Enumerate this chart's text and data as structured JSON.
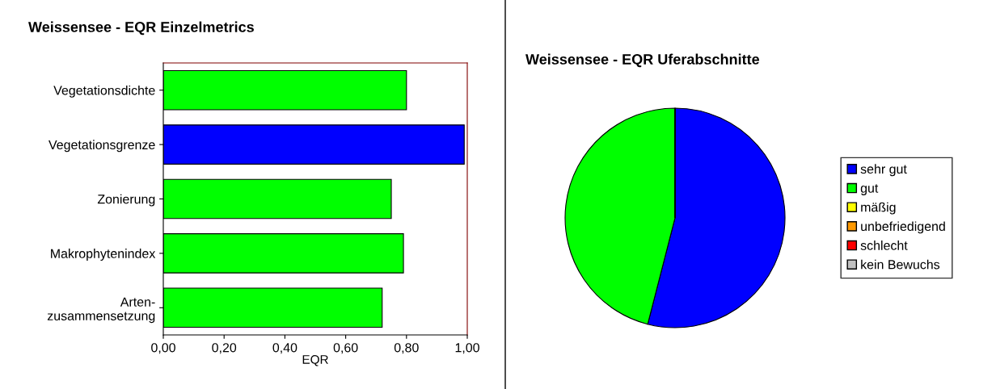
{
  "chart_data": [
    {
      "type": "bar",
      "title": "Weissensee - EQR Einzelmetrics",
      "xlabel": "EQR",
      "orientation": "horizontal",
      "categories": [
        "Vegetationsdichte",
        "Vegetationsgrenze",
        "Zonierung",
        "Makrophytenindex",
        "Arten-\nzusammensetzung"
      ],
      "values": [
        0.8,
        0.99,
        0.75,
        0.79,
        0.72
      ],
      "colors": [
        "#00ff00",
        "#0000ff",
        "#00ff00",
        "#00ff00",
        "#00ff00"
      ],
      "xlim": [
        0,
        1.0
      ],
      "xticks": [
        {
          "value": 0,
          "label": "0,00"
        },
        {
          "value": 0.2,
          "label": "0,20"
        },
        {
          "value": 0.4,
          "label": "0,40"
        },
        {
          "value": 0.6,
          "label": "0,60"
        },
        {
          "value": 0.8,
          "label": "0,80"
        },
        {
          "value": 1.0,
          "label": "1,00"
        }
      ],
      "grid": false
    },
    {
      "type": "pie",
      "title": "Weissensee - EQR Uferabschnitte",
      "categories": [
        "sehr gut",
        "gut",
        "mäßig",
        "unbefriedigend",
        "schlecht",
        "kein Bewuchs"
      ],
      "values": [
        54,
        46,
        0,
        0,
        0,
        0
      ],
      "colors": [
        "#0000ff",
        "#00ff00",
        "#ffff00",
        "#ff9900",
        "#ff0000",
        "#c0c0c0"
      ],
      "legend": "right"
    }
  ]
}
